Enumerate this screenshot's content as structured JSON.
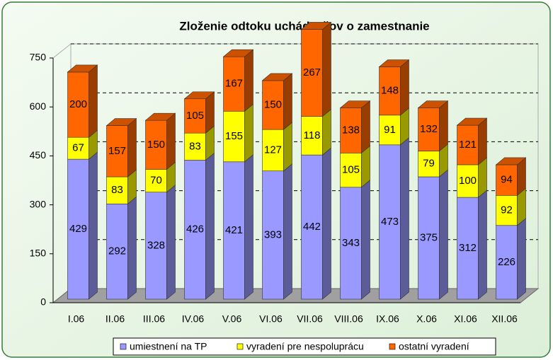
{
  "chart_data": {
    "type": "bar3d_stacked",
    "title": "Zloženie odtoku uchádzačov o zamestnanie",
    "categories": [
      "I.06",
      "II.06",
      "III.06",
      "IV.06",
      "V.06",
      "VI.06",
      "VII.06",
      "VIII.06",
      "IX.06",
      "X.06",
      "XI.06",
      "XII.06"
    ],
    "series": [
      {
        "name": "umiestnení na TP",
        "color": "#9999ff",
        "values": [
          429,
          292,
          328,
          426,
          421,
          393,
          442,
          343,
          473,
          375,
          312,
          226
        ]
      },
      {
        "name": "vyradení pre nespoluprácu",
        "color": "#ffff00",
        "values": [
          67,
          83,
          70,
          83,
          155,
          127,
          118,
          105,
          91,
          79,
          100,
          92
        ]
      },
      {
        "name": "ostatní vyradení",
        "color": "#ff6600",
        "values": [
          200,
          157,
          150,
          105,
          167,
          150,
          267,
          138,
          148,
          132,
          121,
          94
        ]
      }
    ],
    "ylim": [
      0,
      750
    ],
    "yticks": [
      0,
      150,
      300,
      450,
      600,
      750
    ],
    "grid": true,
    "legend": "bottom"
  }
}
